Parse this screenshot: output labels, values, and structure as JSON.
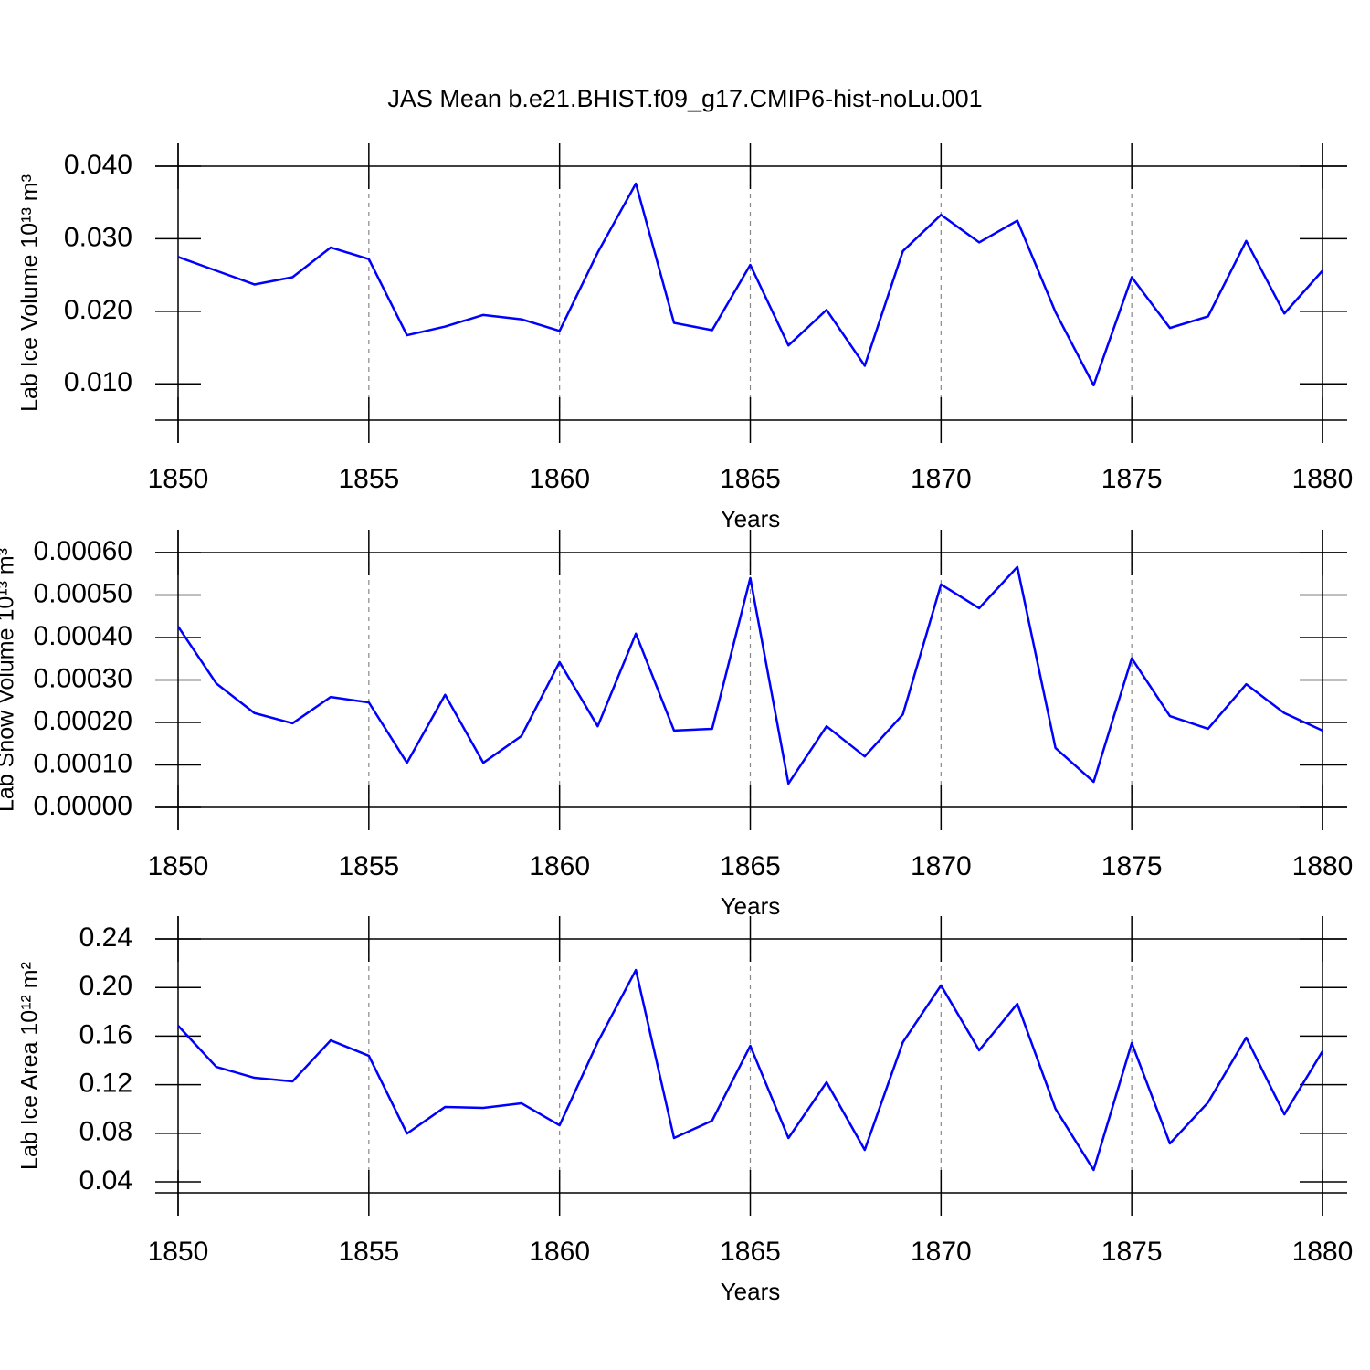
{
  "title": "JAS Mean b.e21.BHIST.f09_g17.CMIP6-hist-noLu.001",
  "chart_data": [
    {
      "type": "line",
      "ylabel": "Lab Ice Volume 10¹³ m³",
      "xlabel": "Years",
      "color": "#0000ff",
      "x": [
        1850,
        1851,
        1852,
        1853,
        1854,
        1855,
        1856,
        1857,
        1858,
        1859,
        1860,
        1861,
        1862,
        1863,
        1864,
        1865,
        1866,
        1867,
        1868,
        1869,
        1870,
        1871,
        1872,
        1873,
        1874,
        1875,
        1876,
        1877,
        1878,
        1879,
        1880
      ],
      "values": [
        0.0275,
        0.0256,
        0.0237,
        0.0247,
        0.0288,
        0.0272,
        0.0167,
        0.0179,
        0.0195,
        0.0189,
        0.0173,
        0.0281,
        0.0376,
        0.0184,
        0.0174,
        0.0264,
        0.0153,
        0.0202,
        0.0125,
        0.0283,
        0.0333,
        0.0295,
        0.0325,
        0.0199,
        0.0098,
        0.0247,
        0.0177,
        0.0193,
        0.0297,
        0.0197,
        0.0256
      ],
      "xlim": [
        1850,
        1880
      ],
      "xticks": [
        1850,
        1855,
        1860,
        1865,
        1870,
        1875,
        1880
      ],
      "ylim": [
        0.005,
        0.04
      ],
      "yticks": [
        {
          "value": 0.01,
          "label": "0.010"
        },
        {
          "value": 0.02,
          "label": "0.020"
        },
        {
          "value": 0.03,
          "label": "0.030"
        },
        {
          "value": 0.04,
          "label": "0.040"
        }
      ],
      "grid": true
    },
    {
      "type": "line",
      "ylabel": "Lab Snow Volume 10¹³ m³",
      "xlabel": "Years",
      "color": "#0000ff",
      "x": [
        1850,
        1851,
        1852,
        1853,
        1854,
        1855,
        1856,
        1857,
        1858,
        1859,
        1860,
        1861,
        1862,
        1863,
        1864,
        1865,
        1866,
        1867,
        1868,
        1869,
        1870,
        1871,
        1872,
        1873,
        1874,
        1875,
        1876,
        1877,
        1878,
        1879,
        1880
      ],
      "values": [
        0.000426,
        0.000292,
        0.000222,
        0.000198,
        0.00026,
        0.000247,
        0.000105,
        0.000265,
        0.000105,
        0.000168,
        0.000342,
        0.000191,
        0.000409,
        0.000181,
        0.000185,
        0.00054,
        5.6e-05,
        0.000191,
        0.00012,
        0.000219,
        0.000525,
        0.000469,
        0.000566,
        0.00014,
        6e-05,
        0.000351,
        0.000215,
        0.000185,
        0.00029,
        0.000222,
        0.000181
      ],
      "xlim": [
        1850,
        1880
      ],
      "xticks": [
        1850,
        1855,
        1860,
        1865,
        1870,
        1875,
        1880
      ],
      "ylim": [
        0,
        0.0006
      ],
      "yticks": [
        {
          "value": 0,
          "label": "0.00000"
        },
        {
          "value": 0.0001,
          "label": "0.00010"
        },
        {
          "value": 0.0002,
          "label": "0.00020"
        },
        {
          "value": 0.0003,
          "label": "0.00030"
        },
        {
          "value": 0.0004,
          "label": "0.00040"
        },
        {
          "value": 0.0005,
          "label": "0.00050"
        },
        {
          "value": 0.0006,
          "label": "0.00060"
        }
      ],
      "grid": true
    },
    {
      "type": "line",
      "ylabel": "Lab Ice Area 10¹² m²",
      "xlabel": "Years",
      "color": "#0000ff",
      "x": [
        1850,
        1851,
        1852,
        1853,
        1854,
        1855,
        1856,
        1857,
        1858,
        1859,
        1860,
        1861,
        1862,
        1863,
        1864,
        1865,
        1866,
        1867,
        1868,
        1869,
        1870,
        1871,
        1872,
        1873,
        1874,
        1875,
        1876,
        1877,
        1878,
        1879,
        1880
      ],
      "values": [
        0.1686,
        0.1347,
        0.1257,
        0.1227,
        0.1565,
        0.1438,
        0.0798,
        0.1017,
        0.1009,
        0.1047,
        0.0866,
        0.155,
        0.2144,
        0.0761,
        0.0904,
        0.152,
        0.0761,
        0.122,
        0.0663,
        0.155,
        0.2017,
        0.1483,
        0.1866,
        0.1002,
        0.0498,
        0.1543,
        0.0716,
        0.1054,
        0.1588,
        0.0956,
        0.1475
      ],
      "xlim": [
        1850,
        1880
      ],
      "xticks": [
        1850,
        1855,
        1860,
        1865,
        1870,
        1875,
        1880
      ],
      "ylim": [
        0.031,
        0.24
      ],
      "yticks": [
        0.04,
        0.08,
        0.12,
        0.16,
        {
          "value": 0.2,
          "label": "0.20"
        },
        0.24
      ],
      "grid": true
    }
  ]
}
